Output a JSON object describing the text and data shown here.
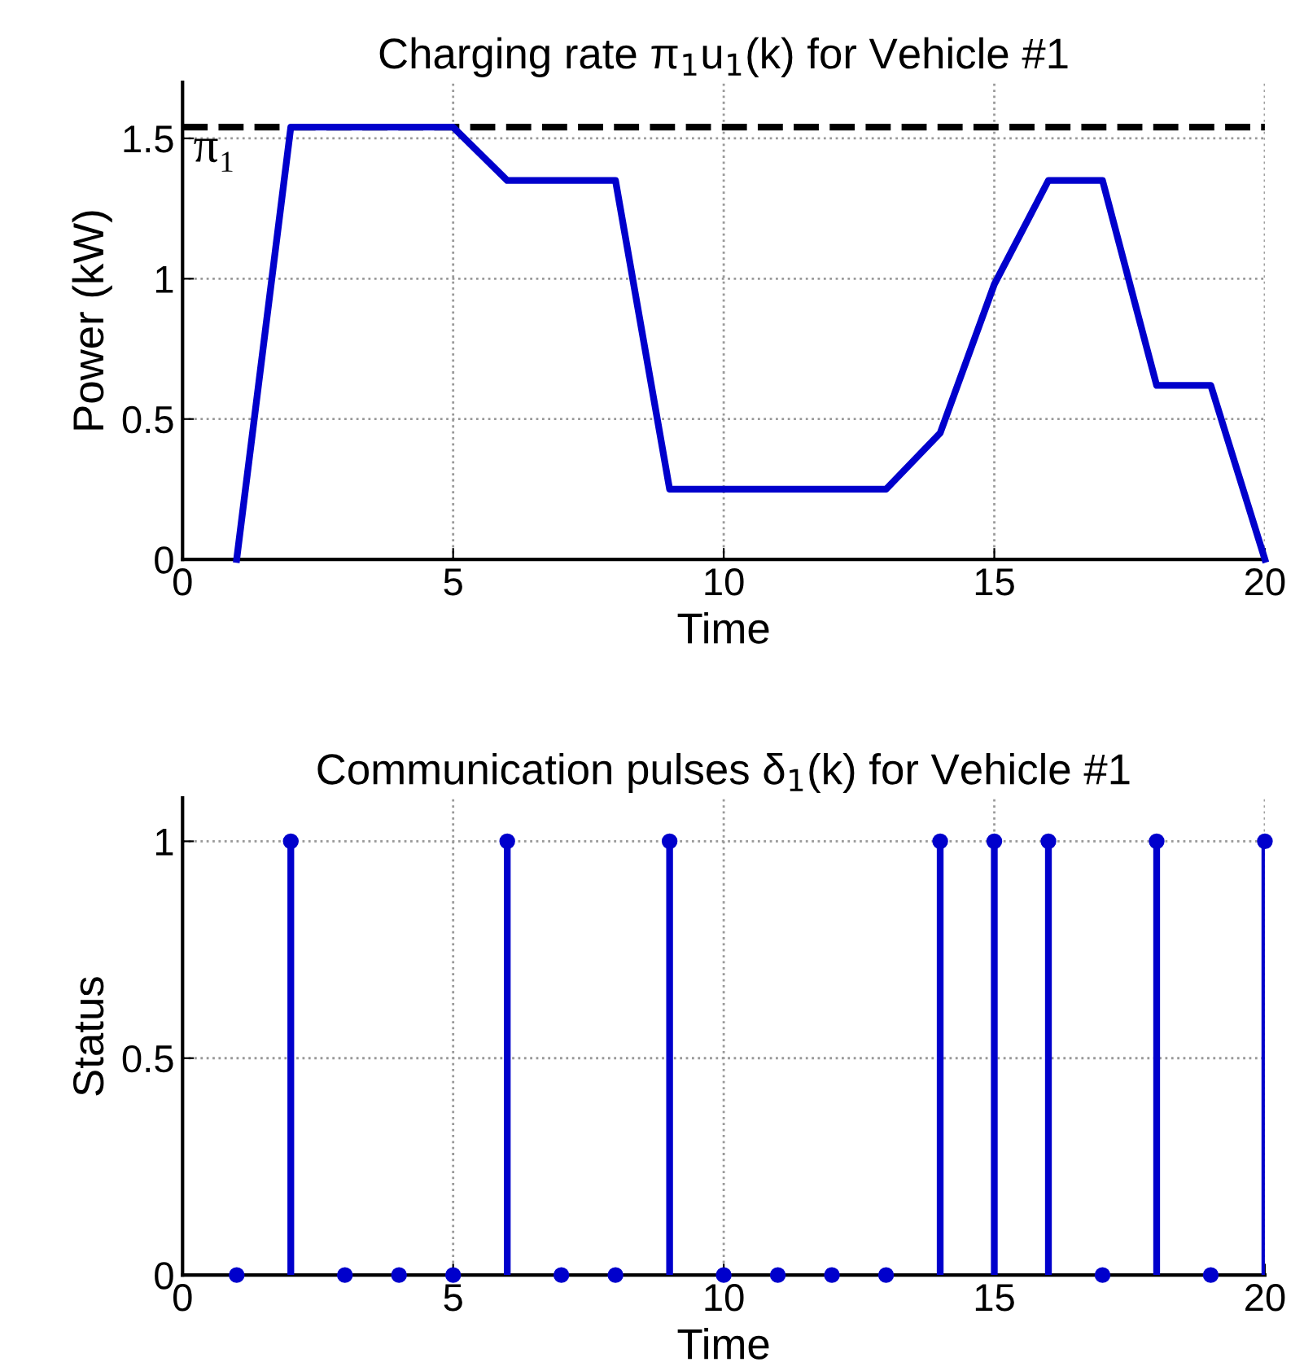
{
  "chart_data": [
    {
      "type": "line",
      "title": "Charging rate π$_{1}$u$_{1}$(k) for Vehicle #1",
      "xlabel": "Time",
      "ylabel": "Power (kW)",
      "x": [
        1,
        2,
        3,
        4,
        5,
        6,
        7,
        8,
        9,
        10,
        11,
        12,
        13,
        14,
        15,
        16,
        17,
        18,
        19,
        20
      ],
      "series": [
        {
          "color": "#0000cc",
          "values": [
            0,
            1.54,
            1.54,
            1.54,
            1.54,
            1.35,
            1.35,
            1.35,
            0.25,
            0.25,
            0.25,
            0.25,
            0.25,
            0.45,
            0.98,
            1.35,
            1.35,
            0.62,
            0.62,
            0
          ]
        }
      ],
      "xlim": [
        0,
        20
      ],
      "ylim": [
        0,
        1.7
      ],
      "xticks": [
        0,
        5,
        10,
        15,
        20
      ],
      "yticks": [
        0,
        0.5,
        1,
        1.5
      ],
      "ref_lines": [
        {
          "axis": "y",
          "value": 1.54,
          "label": "π₁",
          "color": "#000000",
          "line_style": "dashed"
        }
      ],
      "grid": true,
      "marker": "none",
      "line_style": "solid"
    },
    {
      "type": "lollipop",
      "title": "Communication pulses δ$_{1}$(k) for Vehicle #1",
      "xlabel": "Time",
      "ylabel": "Status",
      "x": [
        1,
        2,
        3,
        4,
        5,
        6,
        7,
        8,
        9,
        10,
        11,
        12,
        13,
        14,
        15,
        16,
        17,
        18,
        19,
        20
      ],
      "series": [
        {
          "color": "#0000cc",
          "values": [
            0,
            1,
            0,
            0,
            0,
            1,
            0,
            0,
            1,
            0,
            0,
            0,
            0,
            1,
            1,
            1,
            0,
            1,
            0,
            1
          ]
        }
      ],
      "xlim": [
        0,
        20
      ],
      "ylim": [
        0,
        1.1
      ],
      "xticks": [
        0,
        5,
        10,
        15,
        20
      ],
      "yticks": [
        0,
        0.5,
        1
      ],
      "grid": true,
      "marker": "circle"
    }
  ]
}
